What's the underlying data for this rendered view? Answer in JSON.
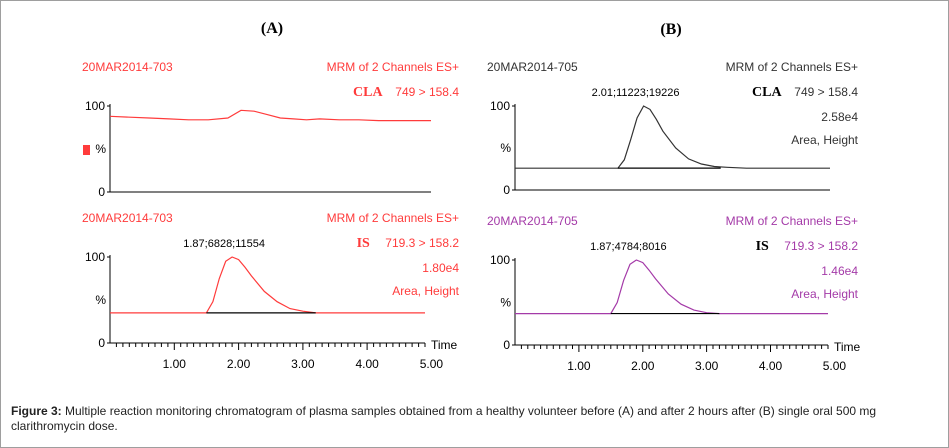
{
  "caption": {
    "label": "Figure 3:",
    "text": " Multiple reaction monitoring chromatogram of plasma samples obtained from a healthy volunteer before (A) and after 2 hours after (B) single oral 500 mg clarithromycin dose."
  },
  "colors": {
    "red": "#ff3b3b",
    "purple": "#a43aa8",
    "dark": "#333333",
    "axis": "#000000"
  },
  "chart_data": [
    {
      "type": "line",
      "panel": "A",
      "title": "(A)",
      "channels": [
        {
          "sample": "20MAR2014-703",
          "mrm": "MRM of 2 Channels ES+",
          "analyte": "CLA",
          "transition": "749 > 158.4",
          "intensity": "",
          "mode": "",
          "peak_label": "",
          "y_ticks": [
            "100",
            "%",
            "0"
          ],
          "ylim": [
            0,
            100
          ],
          "color": "#ff3b3b",
          "x": [
            0.0,
            0.3,
            0.6,
            0.9,
            1.2,
            1.5,
            1.8,
            2.0,
            2.2,
            2.4,
            2.6,
            2.8,
            3.0,
            3.2,
            3.5,
            3.8,
            4.1,
            4.4,
            4.5,
            4.9
          ],
          "y": [
            88,
            87,
            86,
            85,
            84,
            84,
            86,
            95,
            94,
            90,
            86,
            85,
            84,
            85,
            84,
            84,
            83,
            83,
            83,
            83
          ]
        },
        {
          "sample": "20MAR2014-703",
          "mrm": "MRM of 2 Channels ES+",
          "analyte": "IS",
          "transition": "719.3 > 158.2",
          "intensity": "1.80e4",
          "mode": "Area, Height",
          "peak_label": "1.87;6828;11554",
          "y_ticks": [
            "100",
            "%",
            "0"
          ],
          "ylim": [
            0,
            100
          ],
          "color": "#ff3b3b",
          "x": [
            0.0,
            1.5,
            1.6,
            1.7,
            1.8,
            1.9,
            2.0,
            2.1,
            2.2,
            2.4,
            2.6,
            2.8,
            3.0,
            3.2,
            3.5,
            4.0,
            4.9
          ],
          "y": [
            35,
            35,
            48,
            75,
            95,
            100,
            97,
            88,
            78,
            60,
            48,
            40,
            37,
            35,
            35,
            35,
            35
          ]
        }
      ],
      "x_ticks": [
        "1.00",
        "2.00",
        "3.00",
        "4.00",
        "5.00"
      ],
      "xlabel": "Time"
    },
    {
      "type": "line",
      "panel": "B",
      "title": "(B)",
      "channels": [
        {
          "sample": "20MAR2014-705",
          "mrm": "MRM of 2 Channels ES+",
          "analyte": "CLA",
          "transition": "749 > 158.4",
          "intensity": "2.58e4",
          "mode": "Area, Height",
          "peak_label": "2.01;11223;19226",
          "y_ticks": [
            "100",
            "%",
            "0"
          ],
          "ylim": [
            0,
            100
          ],
          "color": "#333333",
          "x": [
            0.0,
            1.6,
            1.7,
            1.8,
            1.9,
            2.0,
            2.1,
            2.2,
            2.3,
            2.5,
            2.7,
            2.9,
            3.1,
            3.3,
            3.6,
            4.0,
            4.9
          ],
          "y": [
            26,
            26,
            36,
            60,
            86,
            100,
            96,
            84,
            70,
            50,
            37,
            31,
            28,
            27,
            26,
            26,
            26
          ]
        },
        {
          "sample": "20MAR2014-705",
          "mrm": "MRM of 2 Channels ES+",
          "analyte": "IS",
          "transition": "719.3 > 158.2",
          "intensity": "1.46e4",
          "mode": "Area, Height",
          "peak_label": "1.87;4784;8016",
          "y_ticks": [
            "100",
            "%",
            "0"
          ],
          "ylim": [
            0,
            100
          ],
          "color": "#a43aa8",
          "x": [
            0.0,
            1.5,
            1.6,
            1.7,
            1.8,
            1.9,
            2.0,
            2.1,
            2.2,
            2.4,
            2.6,
            2.8,
            3.0,
            3.2,
            3.5,
            4.0,
            4.9
          ],
          "y": [
            37,
            37,
            50,
            76,
            95,
            100,
            97,
            88,
            78,
            60,
            48,
            41,
            38,
            37,
            37,
            37,
            37
          ]
        }
      ],
      "x_ticks": [
        "1.00",
        "2.00",
        "3.00",
        "4.00",
        "5.00"
      ],
      "xlabel": "Time"
    }
  ]
}
